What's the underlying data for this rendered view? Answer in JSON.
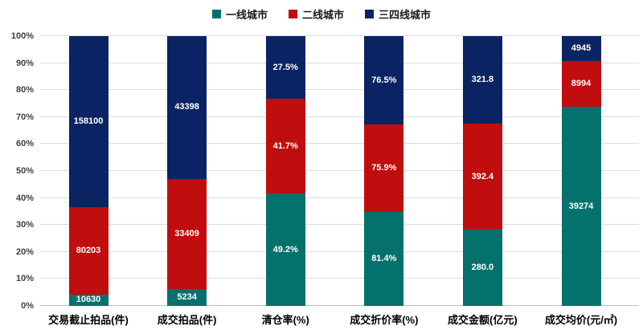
{
  "legend": {
    "position": "top",
    "items": [
      {
        "label": "一线城市",
        "color": "#05716C"
      },
      {
        "label": "二线城市",
        "color": "#C00D0D"
      },
      {
        "label": "三四线城市",
        "color": "#0A2463"
      }
    ]
  },
  "y_axis": {
    "ticks": [
      "0%",
      "10%",
      "20%",
      "30%",
      "40%",
      "50%",
      "60%",
      "70%",
      "80%",
      "90%",
      "100%"
    ]
  },
  "chart_data": {
    "type": "bar",
    "variant": "100%-stacked-column",
    "title": "",
    "xlabel": "",
    "ylabel": "",
    "ylim": [
      0,
      100
    ],
    "grid": true,
    "legend_position": "top",
    "categories": [
      "交易截止拍品(件)",
      "成交拍品(件)",
      "清仓率(%)",
      "成交折价率(%)",
      "成交金额(亿元)",
      "成交均价(元/㎡)"
    ],
    "series": [
      {
        "name": "一线城市",
        "color": "#05716C",
        "values": [
          10630,
          5234,
          49.2,
          81.4,
          280.0,
          39274
        ],
        "labels": [
          "10630",
          "5234",
          "49.2%",
          "81.4%",
          "280.0",
          "39274"
        ]
      },
      {
        "name": "二线城市",
        "color": "#C00D0D",
        "values": [
          80203,
          33409,
          41.7,
          75.9,
          392.4,
          8994
        ],
        "labels": [
          "80203",
          "33409",
          "41.7%",
          "75.9%",
          "392.4",
          "8994"
        ]
      },
      {
        "name": "三四线城市",
        "color": "#0A2463",
        "values": [
          158100,
          43398,
          27.5,
          76.5,
          321.8,
          4945
        ],
        "labels": [
          "158100",
          "43398",
          "27.5%",
          "76.5%",
          "321.8",
          "4945"
        ]
      }
    ]
  },
  "style": {
    "gridline_color": "#dcdcdc",
    "axis_line_color": "#bfbfbf",
    "tick_label_color": "#404040",
    "data_label_color": "#ffffff",
    "background": "#ffffff"
  }
}
